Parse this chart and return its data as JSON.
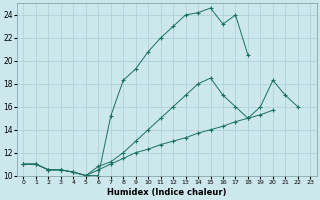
{
  "xlabel": "Humidex (Indice chaleur)",
  "background_color": "#cce8ec",
  "grid_color": "#aacdd4",
  "line_color": "#1a7060",
  "xlim": [
    -0.5,
    23.5
  ],
  "ylim": [
    10,
    25
  ],
  "xticks": [
    0,
    1,
    2,
    3,
    4,
    5,
    6,
    7,
    8,
    9,
    10,
    11,
    12,
    13,
    14,
    15,
    16,
    17,
    18,
    19,
    20,
    21,
    22,
    23
  ],
  "yticks": [
    10,
    12,
    14,
    16,
    18,
    20,
    22,
    24
  ],
  "series": [
    {
      "x": [
        0,
        1,
        2,
        3,
        4,
        5,
        6,
        7,
        8,
        9,
        10,
        11,
        12,
        13,
        14,
        15,
        16,
        17,
        18,
        19,
        20,
        21,
        22
      ],
      "y": [
        11,
        11,
        10.5,
        10.5,
        10.3,
        10,
        10,
        15.2,
        18.3,
        19.3,
        20.8,
        22.0,
        23.0,
        24.0,
        24.2,
        24.6,
        23.2,
        24.0,
        20.5,
        null,
        null,
        null,
        null
      ]
    },
    {
      "x": [
        0,
        1,
        2,
        3,
        4,
        5,
        6,
        7,
        8,
        9,
        10,
        11,
        12,
        13,
        14,
        15,
        16,
        17,
        18,
        19,
        20,
        21,
        22
      ],
      "y": [
        11,
        11,
        10.5,
        10.5,
        10.3,
        10,
        10.8,
        11.2,
        12.0,
        13.0,
        14.0,
        15.0,
        16.0,
        17.0,
        18.0,
        18.5,
        17.0,
        16.0,
        15.0,
        16.0,
        18.3,
        17.0,
        16.0
      ]
    },
    {
      "x": [
        0,
        1,
        2,
        3,
        4,
        5,
        6,
        7,
        8,
        9,
        10,
        11,
        12,
        13,
        14,
        15,
        16,
        17,
        18,
        19,
        20,
        21,
        22
      ],
      "y": [
        11,
        11,
        10.5,
        10.5,
        10.3,
        10,
        10.5,
        11.0,
        11.5,
        12.0,
        12.3,
        12.7,
        13.0,
        13.3,
        13.7,
        14.0,
        14.3,
        14.7,
        15.0,
        15.3,
        15.7,
        null,
        null
      ]
    }
  ]
}
